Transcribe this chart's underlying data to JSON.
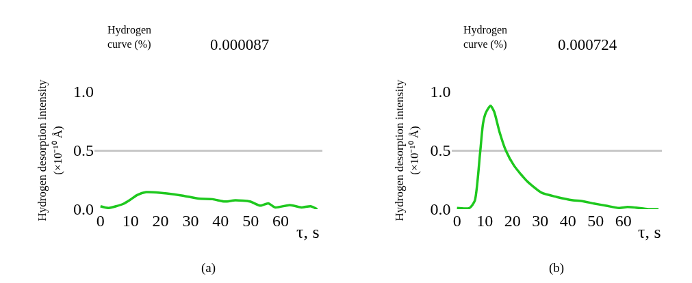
{
  "chart_data": [
    {
      "type": "line",
      "xlabel": "τ, s",
      "ylabel": "Hydrogen desorption intensity\n(×10⁻¹⁰ Å)",
      "annotations": [
        "Hydrogen\ncurve (%)",
        "0.000087",
        "(a)"
      ],
      "xlim": [
        -2,
        74
      ],
      "ylim": [
        0,
        1
      ],
      "xticks": [
        0,
        10,
        20,
        30,
        40,
        50,
        60
      ],
      "yticks": [
        {
          "value": 0,
          "label": "0.0"
        },
        {
          "value": 0.5,
          "label": "0.5"
        },
        {
          "value": 1,
          "label": "1.0"
        }
      ],
      "grid": "y",
      "x": [
        0,
        2.7,
        7.6,
        9.9,
        12.2,
        15.2,
        19.8,
        27.4,
        32.7,
        37.3,
        41.4,
        44.9,
        49.8,
        53.2,
        55.9,
        58.2,
        63.1,
        66.9,
        70,
        72.2
      ],
      "series": [
        {
          "color": "#1ec81e",
          "values": [
            0.025,
            0.01,
            0.045,
            0.08,
            0.12,
            0.145,
            0.14,
            0.115,
            0.09,
            0.085,
            0.065,
            0.075,
            0.065,
            0.03,
            0.05,
            0.015,
            0.035,
            0.015,
            0.025,
            0.0
          ]
        }
      ]
    },
    {
      "type": "line",
      "xlabel": "τ, s",
      "ylabel": "Hydrogen desorption intensity\n(×10⁻¹⁰ Å)",
      "annotations": [
        "Hydrogen\ncurve (%)",
        "0.000724",
        "(b)"
      ],
      "xlim": [
        -2,
        74
      ],
      "ylim": [
        0,
        1
      ],
      "xticks": [
        0,
        10,
        20,
        30,
        40,
        50,
        60
      ],
      "yticks": [
        {
          "value": 0,
          "label": "0.0"
        },
        {
          "value": 0.5,
          "label": "0.5"
        },
        {
          "value": 1,
          "label": "1.0"
        }
      ],
      "grid": "y",
      "x": [
        0,
        4.5,
        6.4,
        8.3,
        9.4,
        10.4,
        12.1,
        13.4,
        15.3,
        17.6,
        20.6,
        25.2,
        30.5,
        35.8,
        41.8,
        44.8,
        49.4,
        53.9,
        58.5,
        61.5,
        64.5,
        69,
        72.7
      ],
      "series": [
        {
          "color": "#1ec81e",
          "values": [
            0.01,
            0.01,
            0.07,
            0.47,
            0.73,
            0.82,
            0.88,
            0.83,
            0.66,
            0.5,
            0.37,
            0.24,
            0.14,
            0.105,
            0.076,
            0.07,
            0.048,
            0.029,
            0.01,
            0.019,
            0.013,
            0.0,
            0.0
          ]
        }
      ]
    }
  ]
}
